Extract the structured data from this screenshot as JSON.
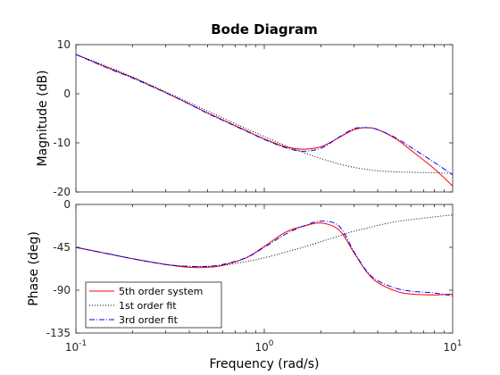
{
  "chart_data": {
    "type": "line",
    "title": "Bode Diagram",
    "xlabel": "Frequency  (rad/s)",
    "xscale": "log",
    "xlim": [
      0.1,
      10
    ],
    "x_ticks": [
      {
        "value": 0.1,
        "base": "10",
        "exp": "-1"
      },
      {
        "value": 1,
        "base": "10",
        "exp": "0"
      },
      {
        "value": 10,
        "base": "10",
        "exp": "1"
      }
    ],
    "grid": false,
    "legend_position": "bottom-left",
    "legend": [
      {
        "label": "5th order system",
        "color": "#ff0000",
        "style": "solid"
      },
      {
        "label": "1st order fit",
        "color": "#000000",
        "style": "dotted"
      },
      {
        "label": "3rd order fit",
        "color": "#0000ff",
        "style": "dashdot"
      }
    ],
    "x": [
      0.1,
      0.15,
      0.2,
      0.3,
      0.4,
      0.5,
      0.6,
      0.8,
      1.0,
      1.3,
      1.6,
      2.0,
      2.5,
      3.0,
      3.5,
      4.0,
      5.0,
      6.0,
      8.0,
      10.0
    ],
    "panels": [
      {
        "ylabel": "Magnitude (dB)",
        "ylim": [
          -20,
          10
        ],
        "yticks": [
          10,
          0,
          -10,
          -20
        ],
        "series": [
          {
            "name": "5th order system",
            "values": [
              8.0,
              5.2,
              3.3,
              0.2,
              -2.1,
              -3.9,
              -5.3,
              -7.5,
              -9.2,
              -10.8,
              -11.3,
              -10.8,
              -8.9,
              -7.3,
              -6.9,
              -7.3,
              -9.2,
              -11.5,
              -15.3,
              -18.8
            ]
          },
          {
            "name": "1st order fit",
            "values": [
              8.0,
              5.4,
              3.4,
              0.4,
              -1.8,
              -3.5,
              -4.9,
              -7.1,
              -8.7,
              -10.6,
              -11.9,
              -13.2,
              -14.3,
              -15.0,
              -15.4,
              -15.7,
              -15.9,
              -16.0,
              -16.1,
              -16.2
            ]
          },
          {
            "name": "3rd order fit",
            "values": [
              8.0,
              5.1,
              3.2,
              0.2,
              -2.1,
              -4.0,
              -5.4,
              -7.6,
              -9.3,
              -11.0,
              -11.7,
              -11.1,
              -8.8,
              -7.1,
              -6.9,
              -7.3,
              -9.0,
              -10.9,
              -14.0,
              -16.5
            ]
          }
        ]
      },
      {
        "ylabel": "Phase (deg)",
        "ylim": [
          -135,
          0
        ],
        "yticks": [
          0,
          -45,
          -90,
          -135
        ],
        "series": [
          {
            "name": "5th order system",
            "values": [
              -45,
              -52,
              -57,
              -63,
              -66,
              -66,
              -64,
              -56,
              -44,
              -29,
              -23,
              -19.5,
              -27,
              -51,
              -71,
              -82,
              -91,
              -94,
              -95,
              -94
            ]
          },
          {
            "name": "1st order fit",
            "values": [
              -45,
              -52,
              -57,
              -63,
              -65,
              -65,
              -64,
              -60,
              -56,
              -50,
              -45,
              -39,
              -33,
              -28,
              -25,
              -22,
              -18,
              -16,
              -13,
              -11
            ]
          },
          {
            "name": "3rd order fit",
            "values": [
              -45,
              -52,
              -57,
              -63,
              -65,
              -65,
              -63,
              -56,
              -45,
              -31,
              -23,
              -17.5,
              -23,
              -50,
              -70,
              -80,
              -88,
              -91,
              -93,
              -96
            ]
          }
        ]
      }
    ]
  }
}
